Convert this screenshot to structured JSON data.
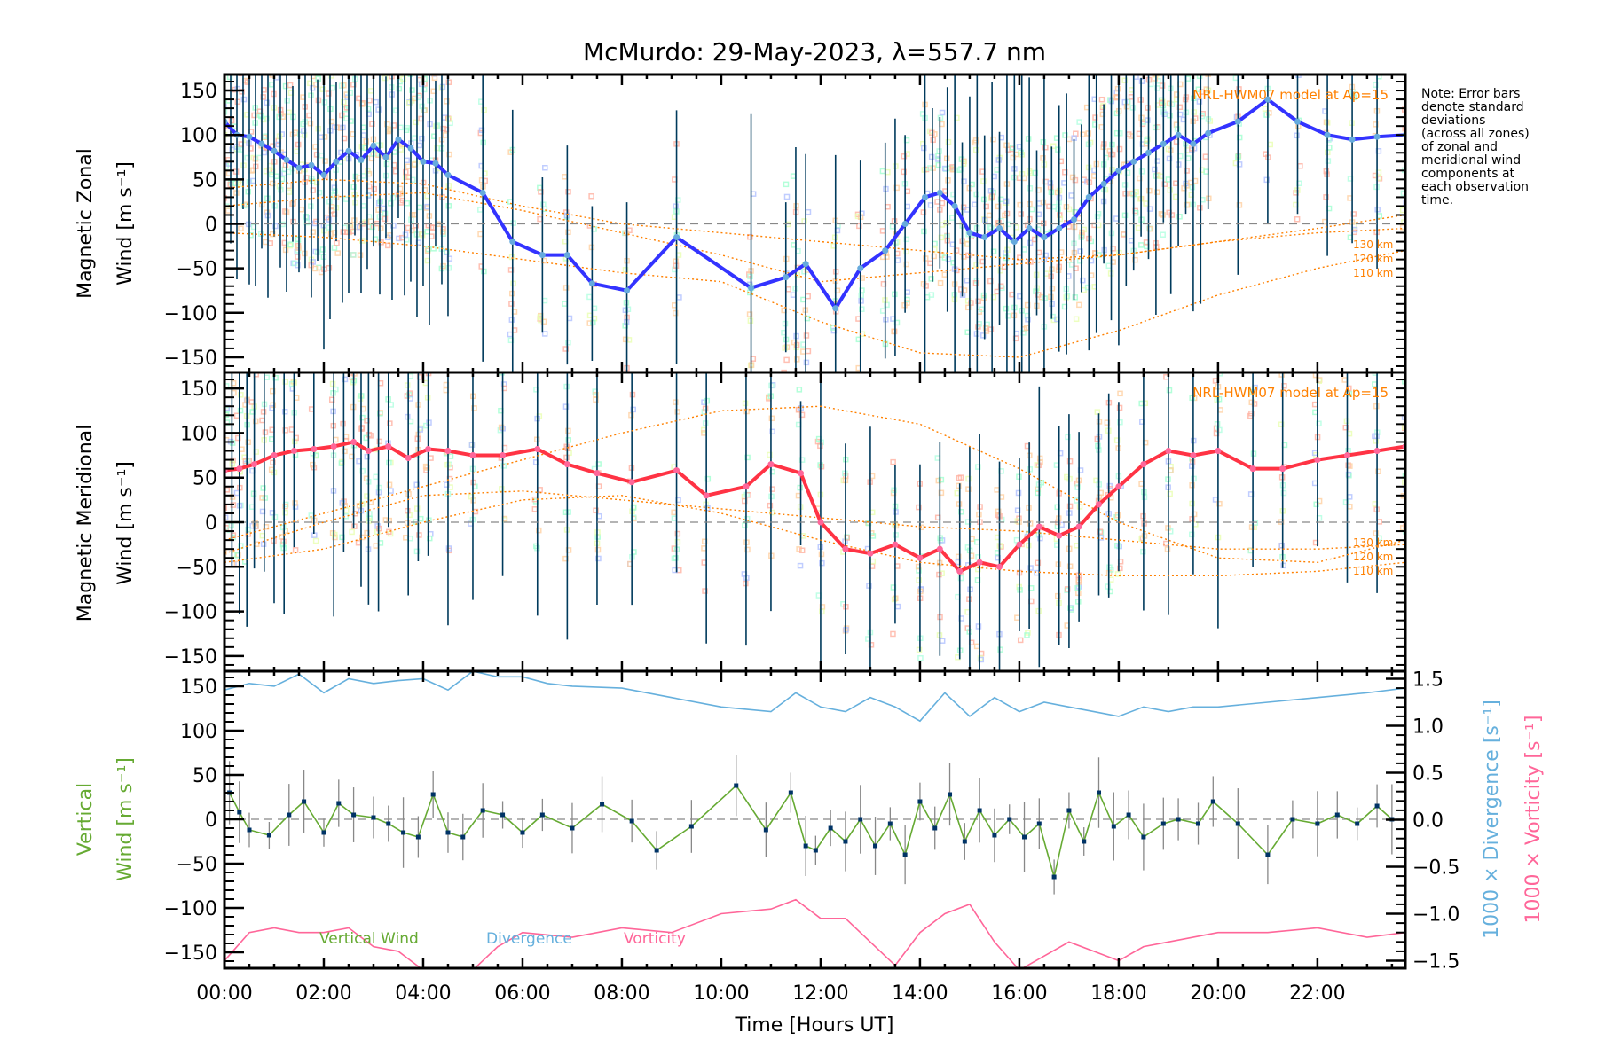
{
  "chart_data": [
    {
      "type": "line",
      "panel": "zonal",
      "title": "McMurdo: 29-May-2023, λ=557.7 nm",
      "xlabel": "Time [Hours UT]",
      "ylabel_line1": "Magnetic Zonal",
      "ylabel_line2": "Wind [m s⁻¹]",
      "ylim": [
        -167,
        168
      ],
      "yticks": [
        150,
        100,
        50,
        0,
        -50,
        -100,
        -150
      ],
      "xlim": [
        0,
        23.77
      ],
      "model_label": "NRL-HWM07 model at Ap=15",
      "altitude_labels": [
        "130 km",
        "120 km",
        "110 km"
      ],
      "series": [
        {
          "name": "Zonal Wind",
          "color": "#3333ff",
          "x": [
            0.0,
            0.25,
            0.5,
            0.75,
            1.0,
            1.25,
            1.5,
            1.75,
            2.0,
            2.25,
            2.5,
            2.75,
            3.0,
            3.25,
            3.5,
            3.75,
            4.0,
            4.25,
            4.5,
            5.2,
            5.8,
            6.4,
            6.9,
            7.4,
            8.1,
            9.1,
            10.6,
            11.3,
            11.7,
            12.3,
            12.8,
            13.3,
            13.7,
            14.1,
            14.4,
            14.7,
            15.0,
            15.3,
            15.6,
            15.9,
            16.2,
            16.5,
            16.8,
            17.1,
            17.4,
            17.7,
            18.0,
            18.3,
            18.6,
            18.9,
            19.2,
            19.5,
            19.8,
            20.4,
            21.0,
            21.6,
            22.2,
            22.7,
            23.2,
            23.77
          ],
          "y": [
            115,
            100,
            98,
            90,
            82,
            72,
            63,
            66,
            55,
            70,
            82,
            72,
            88,
            75,
            95,
            85,
            70,
            68,
            55,
            35,
            -20,
            -35,
            -35,
            -67,
            -75,
            -15,
            -72,
            -60,
            -45,
            -95,
            -50,
            -30,
            0,
            30,
            35,
            20,
            -10,
            -15,
            -5,
            -20,
            -5,
            -15,
            -5,
            5,
            30,
            45,
            60,
            70,
            80,
            90,
            100,
            90,
            102,
            115,
            140,
            115,
            100,
            95,
            98,
            100
          ]
        },
        {
          "name": "Model 130 km",
          "color": "#ff8000",
          "style": "dotted",
          "x": [
            0,
            2,
            4,
            6,
            8,
            10,
            12,
            14,
            16,
            18,
            20,
            22,
            23.77
          ],
          "y": [
            40,
            50,
            45,
            20,
            0,
            -10,
            -20,
            -30,
            -40,
            -35,
            -20,
            -5,
            10
          ]
        },
        {
          "name": "Model 120 km",
          "color": "#ff8000",
          "style": "dotted",
          "x": [
            0,
            2,
            4,
            6,
            8,
            10,
            12,
            14,
            16,
            18,
            20,
            22,
            23.77
          ],
          "y": [
            20,
            30,
            35,
            15,
            -10,
            -35,
            -65,
            -55,
            -45,
            -35,
            -20,
            -10,
            -5
          ]
        },
        {
          "name": "Model 110 km",
          "color": "#ff8000",
          "style": "dotted",
          "x": [
            0,
            2,
            4,
            6,
            8,
            10,
            12,
            14,
            16,
            18,
            20,
            22,
            23.77
          ],
          "y": [
            -10,
            -15,
            -25,
            -40,
            -55,
            -65,
            -110,
            -145,
            -150,
            -120,
            -80,
            -50,
            -30
          ]
        }
      ]
    },
    {
      "type": "line",
      "panel": "meridional",
      "ylabel_line1": "Magnetic Meridional",
      "ylabel_line2": "Wind [m s⁻¹]",
      "ylim": [
        -167,
        168
      ],
      "yticks": [
        150,
        100,
        50,
        0,
        -50,
        -100,
        -150
      ],
      "xlim": [
        0,
        23.77
      ],
      "model_label": "NRL-HWM07 model at Ap=15",
      "altitude_labels": [
        "130 km",
        "120 km",
        "110 km"
      ],
      "series": [
        {
          "name": "Meridional Wind",
          "color": "#ff3344",
          "x": [
            0.0,
            0.3,
            0.6,
            1.0,
            1.4,
            1.8,
            2.2,
            2.6,
            2.9,
            3.3,
            3.7,
            4.1,
            4.5,
            5.0,
            5.6,
            6.3,
            6.9,
            7.5,
            8.2,
            9.1,
            9.7,
            10.5,
            11.0,
            11.6,
            12.0,
            12.5,
            13.0,
            13.5,
            14.0,
            14.4,
            14.8,
            15.2,
            15.6,
            16.0,
            16.4,
            16.8,
            17.2,
            17.6,
            18.0,
            18.5,
            19.0,
            19.5,
            20.0,
            20.7,
            21.3,
            22.0,
            22.6,
            23.2,
            23.77
          ],
          "y": [
            58,
            60,
            65,
            75,
            80,
            82,
            85,
            90,
            80,
            85,
            72,
            82,
            80,
            75,
            75,
            82,
            65,
            55,
            45,
            58,
            30,
            40,
            65,
            55,
            0,
            -30,
            -35,
            -25,
            -40,
            -30,
            -55,
            -45,
            -50,
            -25,
            -5,
            -15,
            -5,
            20,
            40,
            65,
            80,
            75,
            80,
            60,
            60,
            70,
            75,
            80,
            85
          ]
        },
        {
          "name": "Model 130 km",
          "color": "#ff8000",
          "style": "dotted",
          "x": [
            0,
            2,
            4,
            6,
            8,
            10,
            12,
            14,
            16,
            18,
            20,
            22,
            23.77
          ],
          "y": [
            -20,
            10,
            40,
            70,
            100,
            125,
            130,
            110,
            60,
            0,
            -40,
            -45,
            -20
          ]
        },
        {
          "name": "Model 120 km",
          "color": "#ff8000",
          "style": "dotted",
          "x": [
            0,
            2,
            4,
            6,
            8,
            10,
            12,
            14,
            16,
            18,
            20,
            22,
            23.77
          ],
          "y": [
            -35,
            0,
            30,
            35,
            25,
            15,
            5,
            -5,
            -10,
            -20,
            -30,
            -30,
            -25
          ]
        },
        {
          "name": "Model 110 km",
          "color": "#ff8000",
          "style": "dotted",
          "x": [
            0,
            2,
            4,
            6,
            8,
            10,
            12,
            14,
            16,
            18,
            20,
            22,
            23.77
          ],
          "y": [
            -45,
            -30,
            0,
            25,
            30,
            10,
            -20,
            -45,
            -55,
            -60,
            -60,
            -55,
            -45
          ]
        }
      ]
    },
    {
      "type": "line",
      "panel": "vertical",
      "ylabel_left_line1": "Vertical",
      "ylabel_left_line2": "Wind [m s⁻¹]",
      "ylabel_right_divergence": "1000 × Divergence [s⁻¹]",
      "ylabel_right_vorticity": "1000 × Vorticity [s⁻¹]",
      "ylim": [
        -168,
        167
      ],
      "yticks": [
        150,
        100,
        50,
        0,
        -50,
        -100,
        -150
      ],
      "y2lim": [
        -1.58,
        1.58
      ],
      "y2ticks": [
        "1.5",
        "1.0",
        "0.5",
        "0.0",
        "-0.5",
        "-1.0",
        "-1.5"
      ],
      "xlim": [
        0,
        23.77
      ],
      "xticks": [
        "00:00",
        "02:00",
        "04:00",
        "06:00",
        "08:00",
        "10:00",
        "12:00",
        "14:00",
        "16:00",
        "18:00",
        "20:00",
        "22:00"
      ],
      "legend": [
        "Vertical Wind",
        "Divergence",
        "Vorticity"
      ],
      "series": [
        {
          "name": "Vertical Wind",
          "color": "#66aa33",
          "marker_color": "#003366",
          "x": [
            0.1,
            0.3,
            0.5,
            0.9,
            1.3,
            1.6,
            2.0,
            2.3,
            2.6,
            3.0,
            3.3,
            3.6,
            3.9,
            4.2,
            4.5,
            4.8,
            5.2,
            5.6,
            6.0,
            6.4,
            7.0,
            7.6,
            8.2,
            8.7,
            9.4,
            10.3,
            10.9,
            11.4,
            11.7,
            11.9,
            12.2,
            12.5,
            12.8,
            13.1,
            13.4,
            13.7,
            14.0,
            14.3,
            14.6,
            14.9,
            15.2,
            15.5,
            15.8,
            16.1,
            16.4,
            16.7,
            17.0,
            17.3,
            17.6,
            17.9,
            18.2,
            18.5,
            18.9,
            19.2,
            19.6,
            19.9,
            20.4,
            21.0,
            21.5,
            22.0,
            22.4,
            22.8,
            23.2,
            23.5
          ],
          "y": [
            30,
            8,
            -12,
            -18,
            5,
            20,
            -15,
            18,
            5,
            2,
            -5,
            -15,
            -20,
            28,
            -15,
            -20,
            10,
            5,
            -15,
            5,
            -10,
            17,
            -2,
            -35,
            -8,
            38,
            -12,
            30,
            -30,
            -35,
            -10,
            -25,
            0,
            -30,
            -5,
            -40,
            20,
            -10,
            28,
            -25,
            10,
            -18,
            0,
            -20,
            -5,
            -65,
            10,
            -25,
            30,
            -8,
            5,
            -20,
            -5,
            0,
            -5,
            20,
            -5,
            -40,
            0,
            -5,
            5,
            -5,
            15,
            0
          ]
        },
        {
          "name": "Divergence",
          "color": "#66b0dd",
          "axis": "right",
          "x": [
            0,
            0.5,
            1.0,
            1.5,
            2.0,
            2.5,
            3.0,
            3.5,
            4.0,
            4.5,
            5.0,
            5.5,
            6.0,
            6.5,
            7.0,
            8.0,
            9.0,
            10.0,
            11.0,
            11.5,
            12.0,
            12.5,
            13.0,
            13.5,
            14.0,
            14.5,
            15.0,
            15.5,
            16.0,
            16.5,
            17.0,
            17.5,
            18.0,
            18.5,
            19.0,
            19.5,
            20.0,
            21.0,
            22.0,
            23.0,
            23.77
          ],
          "y": [
            1.38,
            1.45,
            1.42,
            1.55,
            1.35,
            1.5,
            1.45,
            1.48,
            1.5,
            1.38,
            1.58,
            1.52,
            1.52,
            1.45,
            1.42,
            1.4,
            1.3,
            1.2,
            1.15,
            1.35,
            1.2,
            1.15,
            1.3,
            1.2,
            1.05,
            1.35,
            1.1,
            1.3,
            1.15,
            1.25,
            1.2,
            1.15,
            1.1,
            1.2,
            1.15,
            1.2,
            1.2,
            1.25,
            1.3,
            1.35,
            1.4
          ]
        },
        {
          "name": "Vorticity",
          "color": "#ff6699",
          "axis": "right",
          "x": [
            0,
            0.5,
            1.0,
            1.5,
            2.0,
            2.5,
            3.0,
            3.5,
            4.0,
            4.5,
            5.0,
            5.5,
            6.0,
            7.0,
            8.0,
            9.0,
            10.0,
            11.0,
            11.5,
            12.0,
            12.5,
            13.0,
            13.5,
            14.0,
            14.5,
            15.0,
            15.5,
            16.0,
            16.5,
            17.0,
            17.5,
            18.0,
            18.5,
            19.0,
            20.0,
            21.0,
            22.0,
            23.0,
            23.77
          ],
          "y": [
            -1.5,
            -1.2,
            -1.15,
            -1.2,
            -1.2,
            -1.15,
            -1.35,
            -1.4,
            -1.6,
            -1.65,
            -1.6,
            -1.35,
            -1.2,
            -1.25,
            -1.15,
            -1.2,
            -1.0,
            -0.95,
            -0.85,
            -1.05,
            -1.05,
            -1.3,
            -1.55,
            -1.2,
            -1.0,
            -0.9,
            -1.3,
            -1.6,
            -1.45,
            -1.3,
            -1.4,
            -1.5,
            -1.35,
            -1.3,
            -1.2,
            -1.2,
            -1.15,
            -1.25,
            -1.2
          ]
        }
      ]
    }
  ],
  "note_lines": [
    "Note: Error bars",
    "denote standard",
    "deviations",
    "(across all zones)",
    "of zonal and",
    "meridional wind",
    "components at",
    "each observation",
    "time."
  ]
}
